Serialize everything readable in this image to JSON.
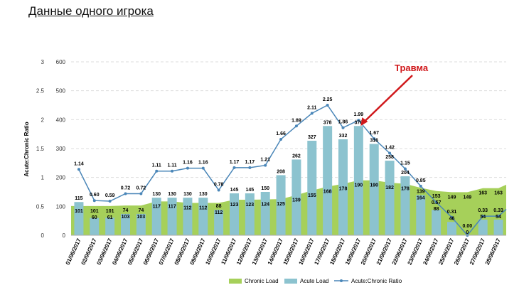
{
  "page_title": "Данные одного игрока",
  "chart_data": {
    "type": "bar+area+line",
    "title": "",
    "ylabel_left": "Acute:Chronic Ratio",
    "ylim_ratio": [
      0,
      3
    ],
    "ylim_load": [
      0,
      600
    ],
    "ratio_ticks": [
      "0",
      "0.5",
      "1",
      "1.5",
      "2",
      "2.5",
      "3"
    ],
    "load_ticks": [
      "0",
      "100",
      "200",
      "300",
      "400",
      "500",
      "600"
    ],
    "categories": [
      "01/06/2017",
      "02/06/2017",
      "03/06/2017",
      "04/06/2017",
      "05/06/2017",
      "06/06/2017",
      "07/06/2017",
      "08/06/2017",
      "09/06/2017",
      "10/06/2017",
      "11/06/2017",
      "12/06/2017",
      "13/06/2017",
      "14/06/2017",
      "15/06/2017",
      "16/06/2017",
      "17/06/2017",
      "18/06/2017",
      "19/06/2017",
      "20/06/2017",
      "21/06/2017",
      "22/06/2017",
      "23/06/2017",
      "24/06/2017",
      "25/06/2017",
      "26/06/2017",
      "27/06/2017",
      "28/06/2017"
    ],
    "series": [
      {
        "name": "Chronic Load",
        "type": "area",
        "color": "#a6d05a",
        "values": [
          101,
          101,
          101,
          103,
          103,
          117,
          117,
          112,
          112,
          112,
          123,
          123,
          124,
          125,
          139,
          155,
          168,
          178,
          190,
          190,
          182,
          178,
          164,
          153,
          149,
          149,
          163,
          163
        ]
      },
      {
        "name": "Acute Load",
        "type": "bar",
        "color": "#8cc3cf",
        "values": [
          115,
          60,
          61,
          74,
          74,
          130,
          130,
          130,
          130,
          88,
          145,
          145,
          150,
          208,
          262,
          327,
          378,
          332,
          378,
          316,
          258,
          204,
          139,
          88,
          46,
          0,
          54,
          54
        ]
      },
      {
        "name": "Acute:Chronic Ratio",
        "type": "line",
        "color": "#4a86b8",
        "values": [
          1.14,
          0.6,
          0.59,
          0.72,
          0.72,
          1.11,
          1.11,
          1.16,
          1.16,
          0.78,
          1.17,
          1.17,
          1.21,
          1.66,
          1.89,
          2.11,
          2.25,
          1.86,
          1.99,
          1.67,
          1.42,
          1.15,
          0.85,
          0.57,
          0.31,
          0.0,
          0.33,
          0.33
        ]
      }
    ],
    "annotation": {
      "text": "Травма",
      "target": "19/06/2017",
      "color": "#d0181b"
    },
    "grid": true,
    "legend": "bottom"
  }
}
